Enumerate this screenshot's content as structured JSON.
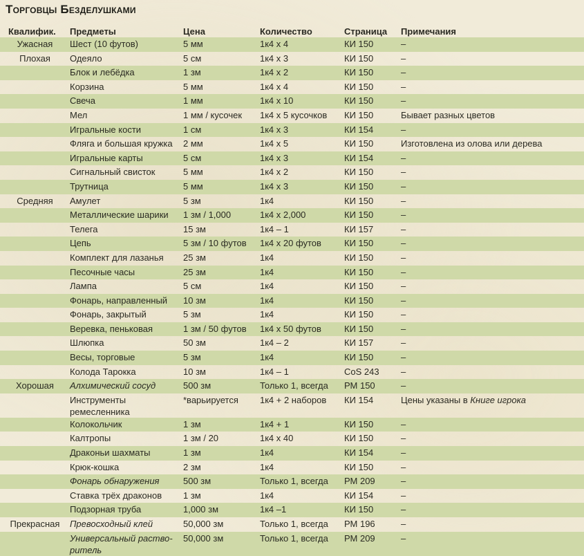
{
  "title": "Торговцы Безделушками",
  "headers": [
    "Квалифик.",
    "Предметы",
    "Цена",
    "Количество",
    "Страница",
    "Примечания"
  ],
  "rows": [
    {
      "q": "Ужасная",
      "item": "Шест (10 футов)",
      "price": "5 мм",
      "qty": "1к4 x 4",
      "page": "КИ 150",
      "note": "–"
    },
    {
      "q": "Плохая",
      "item": "Одеяло",
      "price": "5 см",
      "qty": "1к4 x 3",
      "page": "КИ 150",
      "note": "–"
    },
    {
      "q": "",
      "item": "Блок и лебёдка",
      "price": "1 зм",
      "qty": "1к4 x 2",
      "page": "КИ 150",
      "note": "–"
    },
    {
      "q": "",
      "item": "Корзина",
      "price": "5 мм",
      "qty": "1к4 x 4",
      "page": "КИ 150",
      "note": "–"
    },
    {
      "q": "",
      "item": "Свеча",
      "price": "1 мм",
      "qty": "1к4 x 10",
      "page": "КИ 150",
      "note": "–"
    },
    {
      "q": "",
      "item": "Мел",
      "price": "1 мм / кусочек",
      "qty": "1к4 x 5 кусочков",
      "page": "КИ 150",
      "note": "Бывает разных цветов"
    },
    {
      "q": "",
      "item": "Игральные кости",
      "price": "1 см",
      "qty": "1к4 x 3",
      "page": "КИ 154",
      "note": "–"
    },
    {
      "q": "",
      "item": "Фляга и большая кружка",
      "price": "2 мм",
      "qty": "1к4 x 5",
      "page": "КИ 150",
      "note": "Изготовлена из олова или дерева"
    },
    {
      "q": "",
      "item": "Игральные карты",
      "price": "5 см",
      "qty": "1к4 x 3",
      "page": "КИ 154",
      "note": "–"
    },
    {
      "q": "",
      "item": "Сигнальный свисток",
      "price": "5 мм",
      "qty": "1к4 x 2",
      "page": "КИ 150",
      "note": "–"
    },
    {
      "q": "",
      "item": "Трутница",
      "price": "5 мм",
      "qty": "1к4 x 3",
      "page": "КИ 150",
      "note": "–"
    },
    {
      "q": "Средняя",
      "item": "Амулет",
      "price": "5 зм",
      "qty": "1к4",
      "page": "КИ 150",
      "note": "–"
    },
    {
      "q": "",
      "item": "Металлические шарики",
      "price": "1 зм / 1,000",
      "qty": "1к4 x 2,000",
      "page": "КИ 150",
      "note": "–"
    },
    {
      "q": "",
      "item": "Телега",
      "price": "15 зм",
      "qty": "1к4 – 1",
      "page": "КИ 157",
      "note": "–"
    },
    {
      "q": "",
      "item": "Цепь",
      "price": "5 зм / 10 футов",
      "qty": "1к4 x 20 футов",
      "page": "КИ 150",
      "note": "–"
    },
    {
      "q": "",
      "item": "Комплект для лазанья",
      "price": "25 зм",
      "qty": "1к4",
      "page": "КИ 150",
      "note": "–"
    },
    {
      "q": "",
      "item": "Песочные часы",
      "price": "25 зм",
      "qty": "1к4",
      "page": "КИ 150",
      "note": "–"
    },
    {
      "q": "",
      "item": "Лампа",
      "price": "5 см",
      "qty": "1к4",
      "page": "КИ 150",
      "note": "–"
    },
    {
      "q": "",
      "item": "Фонарь, направленный",
      "price": "10 зм",
      "qty": "1к4",
      "page": "КИ 150",
      "note": "–"
    },
    {
      "q": "",
      "item": "Фонарь, закрытый",
      "price": "5 зм",
      "qty": "1к4",
      "page": "КИ 150",
      "note": "–"
    },
    {
      "q": "",
      "item": "Веревка, пеньковая",
      "price": "1 зм / 50 футов",
      "qty": "1к4 x 50 футов",
      "page": "КИ 150",
      "note": "–"
    },
    {
      "q": "",
      "item": "Шлюпка",
      "price": "50 зм",
      "qty": "1к4 – 2",
      "page": "КИ 157",
      "note": "–"
    },
    {
      "q": "",
      "item": "Весы, торговые",
      "price": "5 зм",
      "qty": "1к4",
      "page": "КИ 150",
      "note": "–"
    },
    {
      "q": "",
      "item": "Колода Тарокка",
      "price": "10 зм",
      "qty": "1к4 – 1",
      "page": "CoS 243",
      "note": "–"
    },
    {
      "q": "Хорошая",
      "item": "Алхимический сосуд",
      "italic": true,
      "price": "500 зм",
      "qty": "Только 1, всегда",
      "page": "РМ 150",
      "note": "–"
    },
    {
      "q": "",
      "item": "Инструменты ремесленника",
      "price": "*варьируется",
      "qty": "1к4 + 2 наборов",
      "page": "КИ 154",
      "note": "Цены указаны в ",
      "note_italic": "Книге игрока"
    },
    {
      "q": "",
      "item": "Колокольчик",
      "price": "1 зм",
      "qty": "1к4 + 1",
      "page": "КИ 150",
      "note": "–"
    },
    {
      "q": "",
      "item": "Калтропы",
      "price": "1 зм / 20",
      "qty": "1к4 x 40",
      "page": "КИ 150",
      "note": "–"
    },
    {
      "q": "",
      "item": "Драконьи шахматы",
      "price": "1 зм",
      "qty": "1к4",
      "page": "КИ 154",
      "note": "–"
    },
    {
      "q": "",
      "item": "Крюк-кошка",
      "price": "2 зм",
      "qty": "1к4",
      "page": "КИ 150",
      "note": "–"
    },
    {
      "q": "",
      "item": "Фонарь обнаружения",
      "italic": true,
      "price": "500 зм",
      "qty": "Только 1, всегда",
      "page": "РМ 209",
      "note": "–"
    },
    {
      "q": "",
      "item": "Ставка трёх драконов",
      "price": "1 зм",
      "qty": "1к4",
      "page": "КИ 154",
      "note": "–"
    },
    {
      "q": "",
      "item": "Подзорная труба",
      "price": "1,000 зм",
      "qty": "1к4 –1",
      "page": "КИ 150",
      "note": "–"
    },
    {
      "q": "Прекрасная",
      "item": "Превосходный клей",
      "italic": true,
      "price": "50,000 зм",
      "qty": "Только 1, всегда",
      "page": "РМ 196",
      "note": "–"
    },
    {
      "q": "",
      "item": "Универсальный раство-ритель",
      "italic": true,
      "price": "50,000 зм",
      "qty": "Только 1, всегда",
      "page": "РМ 209",
      "note": "–"
    }
  ]
}
